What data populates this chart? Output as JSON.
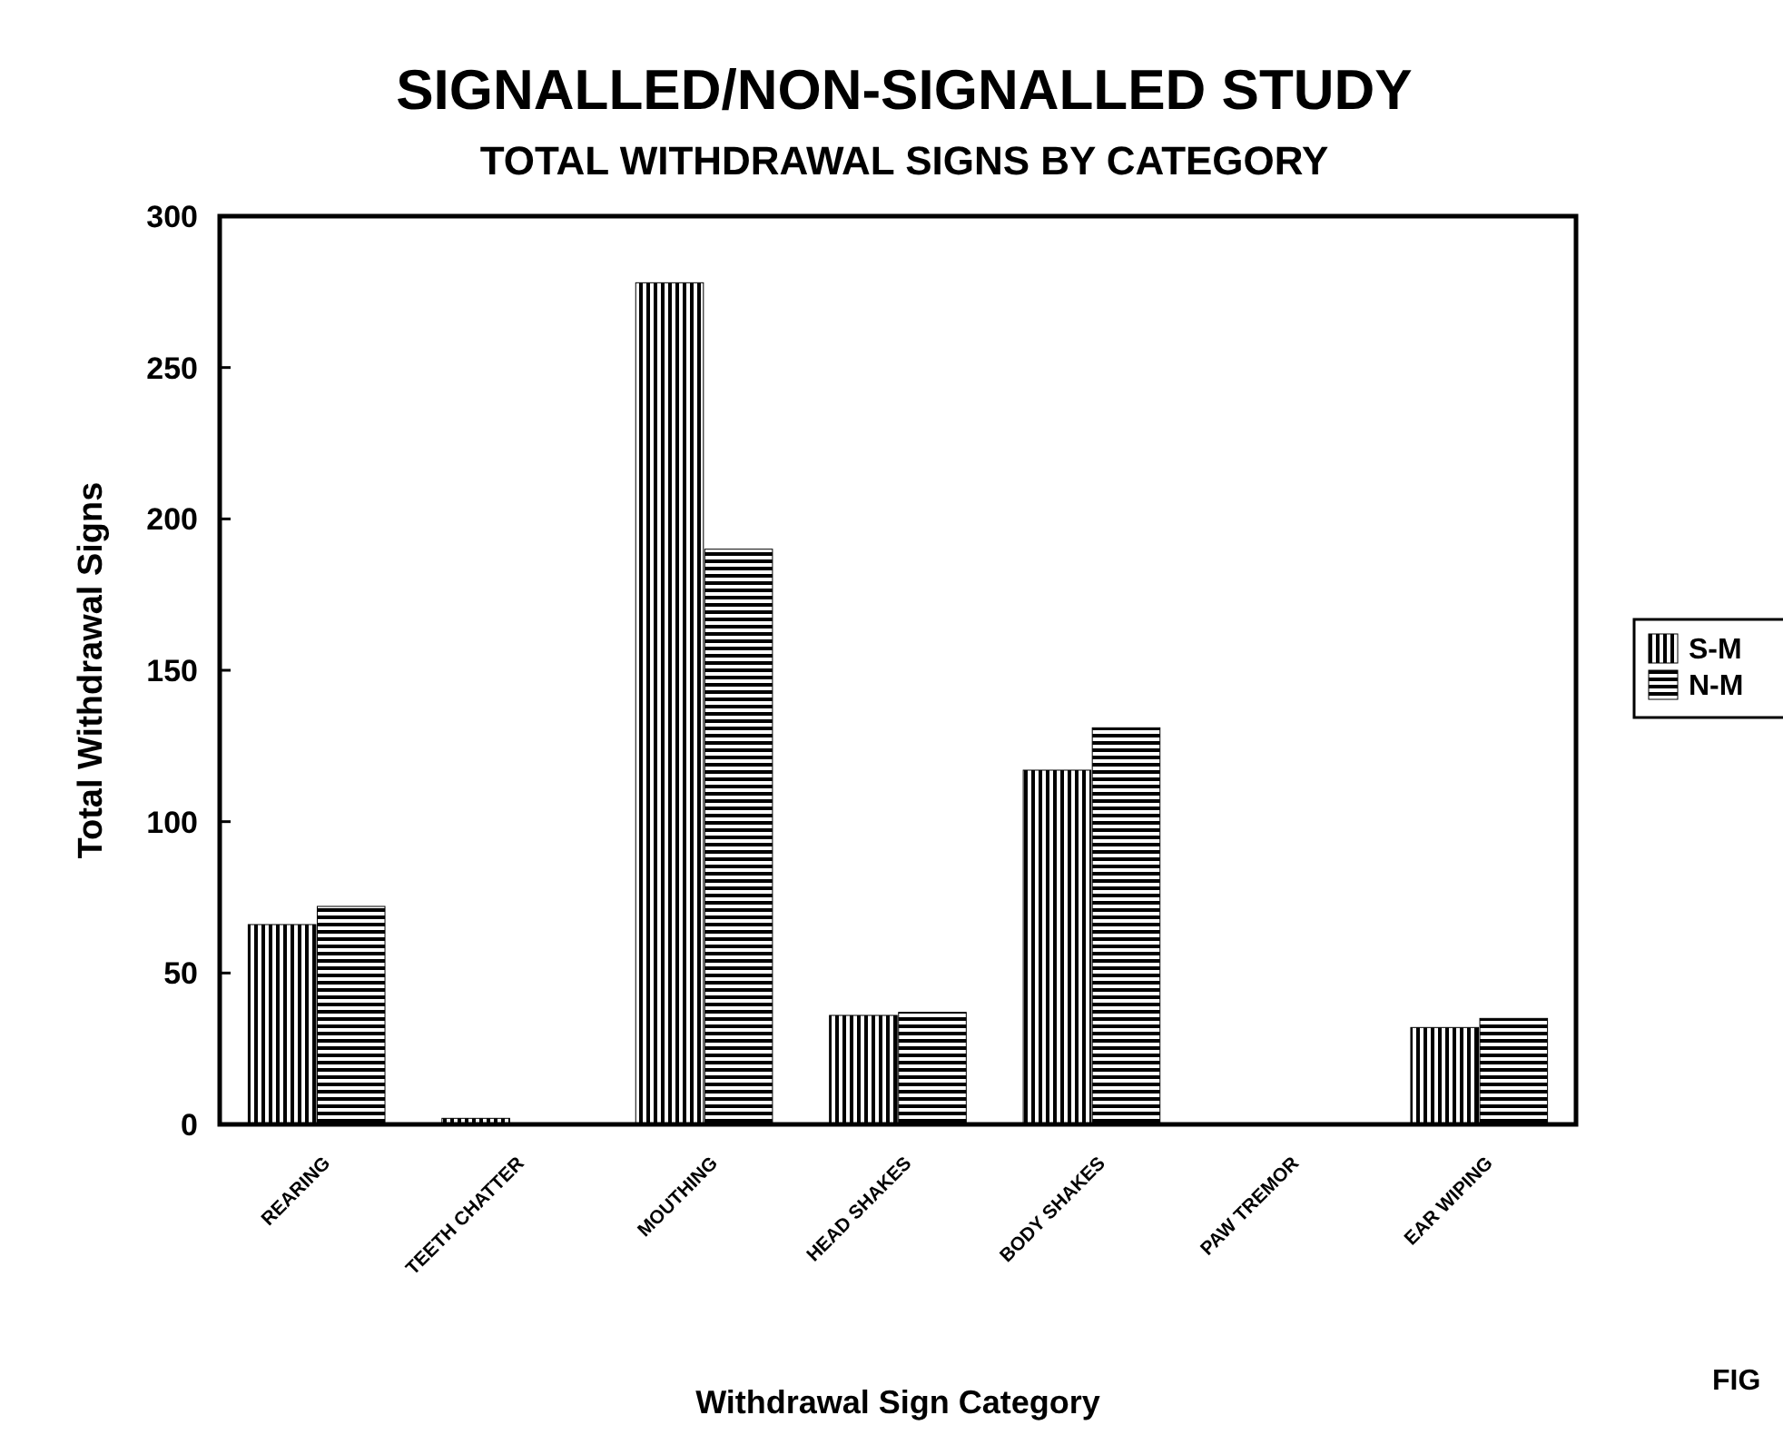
{
  "chart_data": {
    "type": "bar",
    "title": "SIGNALLED/NON-SIGNALLED STUDY",
    "subtitle": "TOTAL WITHDRAWAL SIGNS BY CATEGORY",
    "xlabel": "Withdrawal Sign Category",
    "ylabel": "Total Withdrawal Signs",
    "categories": [
      "REARING",
      "TEETH CHATTER",
      "MOUTHING",
      "HEAD SHAKES",
      "BODY SHAKES",
      "PAW TREMOR",
      "EAR WIPING"
    ],
    "series": [
      {
        "name": "S-M",
        "color": "#000000",
        "values": [
          66,
          2,
          278,
          36,
          117,
          0,
          32
        ]
      },
      {
        "name": "N-M",
        "color": "#000000",
        "values": [
          72,
          0,
          190,
          37,
          131,
          0,
          35
        ]
      }
    ],
    "ylim": [
      0,
      300
    ],
    "yticks": [
      0,
      50,
      100,
      150,
      200,
      250,
      300
    ],
    "grid": false,
    "legend": "right",
    "annotations": [
      "FIG"
    ]
  }
}
